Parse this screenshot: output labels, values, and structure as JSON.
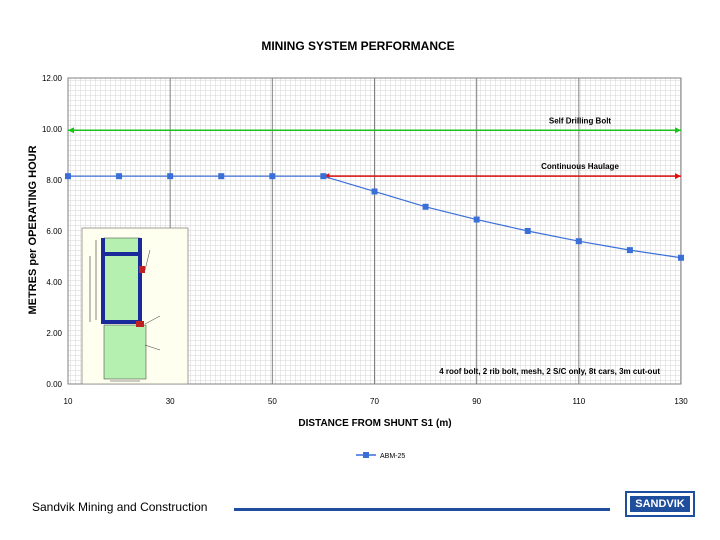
{
  "chart_data": {
    "type": "line",
    "title": "MINING SYSTEM PERFORMANCE",
    "xlabel": "DISTANCE FROM SHUNT S1 (m)",
    "ylabel": "METRES per OPERATING HOUR",
    "xlim": [
      10,
      130
    ],
    "ylim": [
      0,
      12
    ],
    "x_ticks": [
      "10",
      "30",
      "50",
      "70",
      "90",
      "110",
      "130"
    ],
    "y_ticks": [
      "0.00",
      "2.00",
      "4.00",
      "6.00",
      "8.00",
      "10.00",
      "12.00"
    ],
    "grid": true,
    "series": [
      {
        "name": "ABM-25",
        "color": "#3a6fd8",
        "marker": "square",
        "x": [
          10,
          20,
          30,
          40,
          50,
          60,
          70,
          80,
          90,
          100,
          110,
          120,
          130
        ],
        "y": [
          8.15,
          8.15,
          8.15,
          8.15,
          8.15,
          8.15,
          7.55,
          6.95,
          6.45,
          6.0,
          5.6,
          5.25,
          4.95
        ]
      }
    ],
    "reference_lines": [
      {
        "label": "Self Drilling Bolt",
        "y": 9.95,
        "x_from": 10,
        "x_to": 130,
        "color": "#1cc21c"
      },
      {
        "label": "Continuous Haulage",
        "y": 8.15,
        "x_from": 60,
        "x_to": 130,
        "color": "#e01010"
      }
    ],
    "annotation": "4 roof bolt, 2 rib bolt, mesh, 2 S/C only, 8t cars, 3m cut-out",
    "legend": {
      "placement": "bottom",
      "entries": [
        "ABM-25"
      ]
    }
  },
  "footer": {
    "company": "Sandvik Mining and Construction",
    "logo_text": "SANDVIK",
    "accent_color": "#1f4e9c"
  }
}
